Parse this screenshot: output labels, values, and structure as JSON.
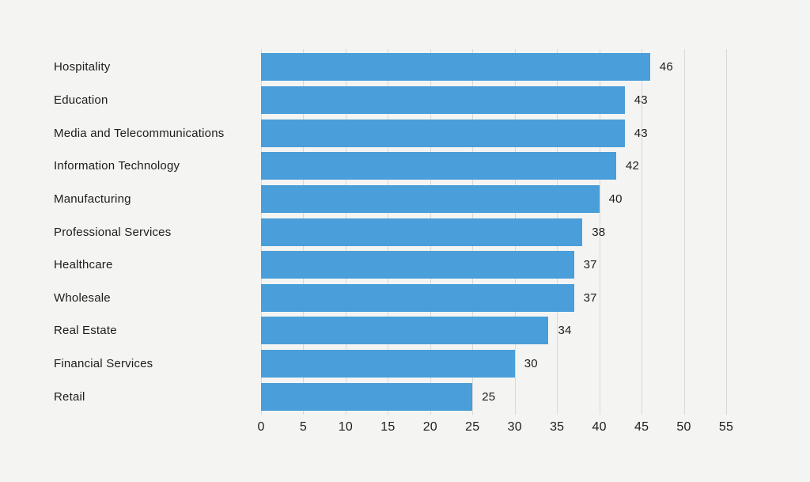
{
  "chart_data": {
    "type": "bar",
    "orientation": "horizontal",
    "categories": [
      "Hospitality",
      "Education",
      "Media and Telecommunications",
      "Information Technology",
      "Manufacturing",
      "Professional Services",
      "Healthcare",
      "Wholesale",
      "Real Estate",
      "Financial Services",
      "Retail"
    ],
    "values": [
      46,
      43,
      43,
      42,
      40,
      38,
      37,
      37,
      34,
      30,
      25
    ],
    "value_labels_shown": true,
    "xlim": [
      0,
      55
    ],
    "x_ticks": [
      0,
      5,
      10,
      15,
      20,
      25,
      30,
      35,
      40,
      45,
      50,
      55
    ],
    "grid": "vertical-gridlines-on",
    "legend": "none",
    "title": "",
    "xlabel": "",
    "ylabel": ""
  },
  "colors": {
    "background": "#f4f5f3",
    "bar": "#4a9ed9",
    "gridline": "#d8d8d6",
    "text": "#1d1d1b"
  }
}
